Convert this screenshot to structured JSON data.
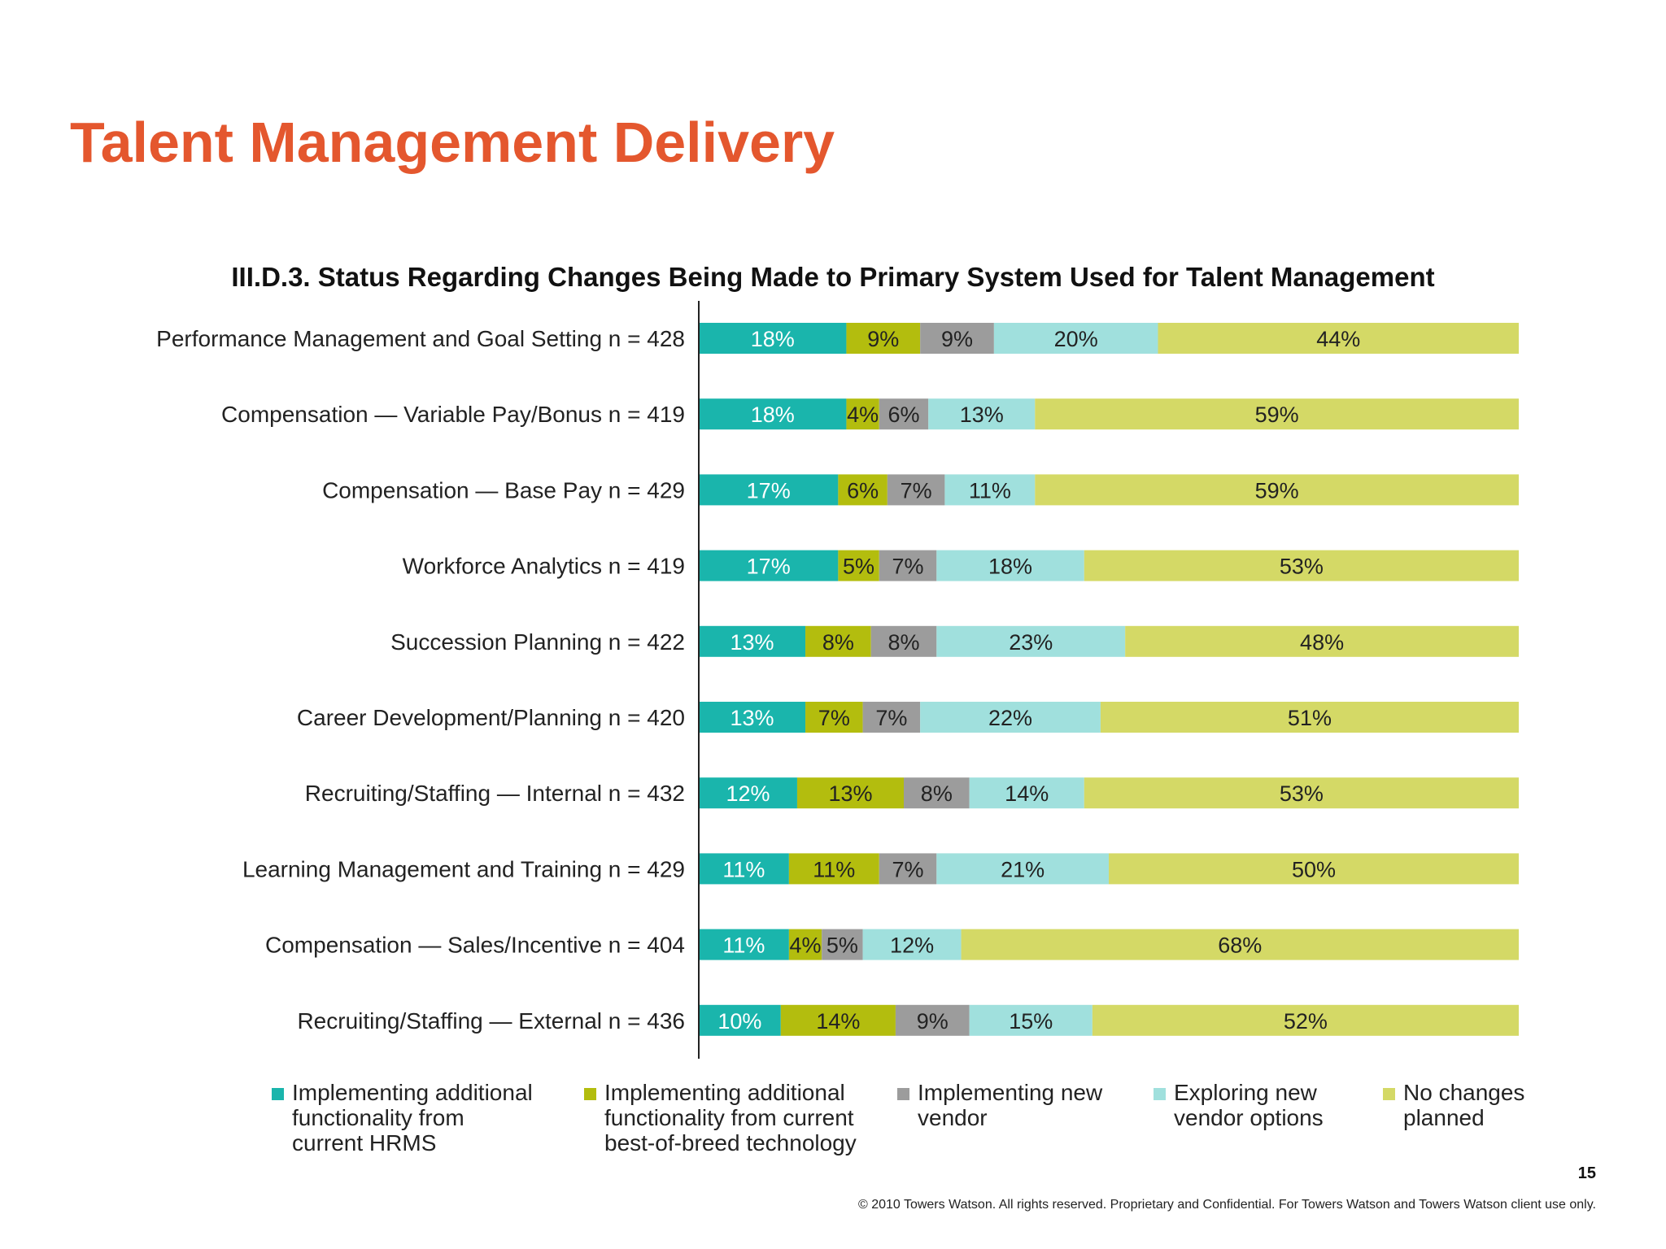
{
  "slide_title": "Talent Management Delivery",
  "chart_data": {
    "type": "bar",
    "orientation": "horizontal",
    "stacked": true,
    "title": "III.D.3. Status Regarding Changes Being Made to Primary System Used for Talent Management",
    "xlabel": "",
    "ylabel": "",
    "xlim": [
      0,
      100
    ],
    "grid": false,
    "legend_position": "bottom",
    "categories": [
      "Performance Management and Goal Setting n = 428",
      "Compensation — Variable Pay/Bonus n = 419",
      "Compensation — Base Pay n = 429",
      "Workforce Analytics n = 419",
      "Succession Planning n = 422",
      "Career Development/Planning n = 420",
      "Recruiting/Staffing — Internal n = 432",
      "Learning Management and Training n = 429",
      "Compensation — Sales/Incentive n = 404",
      "Recruiting/Staffing — External n = 436"
    ],
    "series": [
      {
        "name": "Implementing additional\nfunctionality from\ncurrent HRMS",
        "color": "#1ab5ac",
        "label_color": "#ffffff",
        "values": [
          18,
          18,
          17,
          17,
          13,
          13,
          12,
          11,
          11,
          10
        ]
      },
      {
        "name": "Implementing additional\nfunctionality from current\nbest-of-breed technology",
        "color": "#b3bd0e",
        "label_color": "#222222",
        "values": [
          9,
          4,
          6,
          5,
          8,
          7,
          13,
          11,
          4,
          14
        ]
      },
      {
        "name": "Implementing new\nvendor",
        "color": "#9c9c9c",
        "label_color": "#222222",
        "values": [
          9,
          6,
          7,
          7,
          8,
          7,
          8,
          7,
          5,
          9
        ]
      },
      {
        "name": "Exploring new\nvendor options",
        "color": "#a0e0dd",
        "label_color": "#222222",
        "values": [
          20,
          13,
          11,
          18,
          23,
          22,
          14,
          21,
          12,
          15
        ]
      },
      {
        "name": "No changes\nplanned",
        "color": "#d4d966",
        "label_color": "#222222",
        "values": [
          44,
          59,
          59,
          53,
          48,
          51,
          53,
          50,
          68,
          52
        ]
      }
    ],
    "value_suffix": "%"
  },
  "footer": {
    "page_number": "15",
    "copyright": "© 2010 Towers Watson. All rights reserved. Proprietary and Confidential. For Towers Watson and Towers Watson client use only."
  }
}
